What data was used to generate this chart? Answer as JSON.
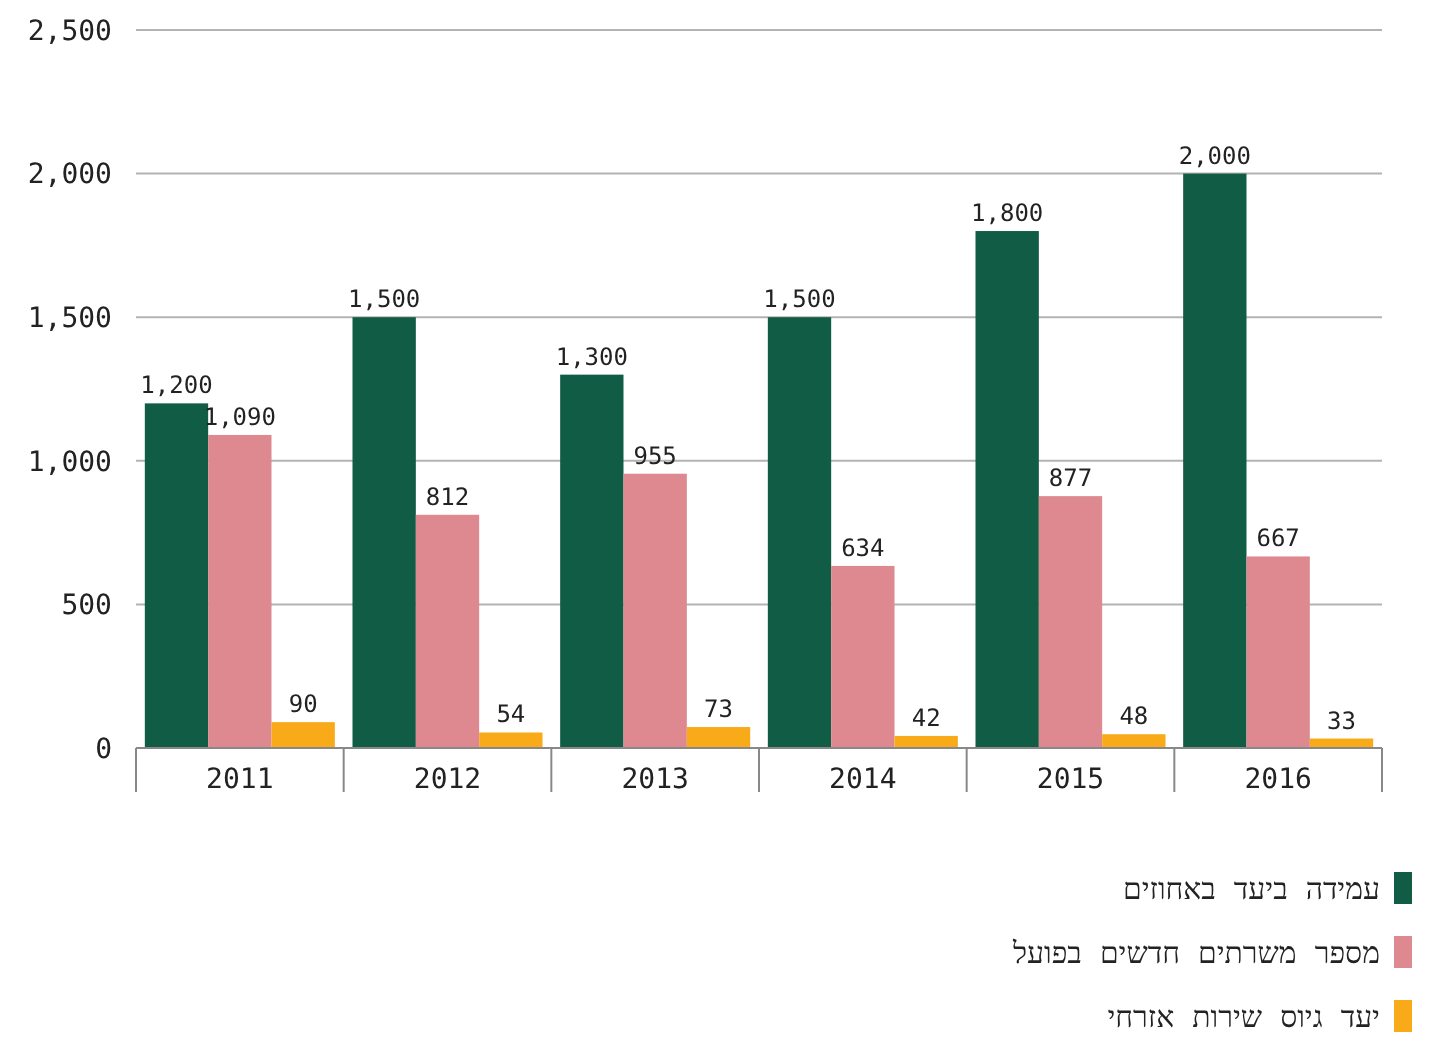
{
  "chart_data": {
    "type": "bar",
    "categories": [
      "2011",
      "2012",
      "2013",
      "2014",
      "2015",
      "2016"
    ],
    "series": [
      {
        "name": "עמידה ביעד באחוזים",
        "color": "#115c45",
        "values": [
          1200,
          1500,
          1300,
          1500,
          1800,
          2000
        ],
        "value_labels": [
          "1,200",
          "1,500",
          "1,300",
          "1,500",
          "1,800",
          "2,000"
        ]
      },
      {
        "name": "מספר משרתים חדשים בפועל",
        "color": "#de8990",
        "values": [
          1090,
          812,
          955,
          634,
          877,
          667
        ],
        "value_labels": [
          "1,090",
          "812",
          "955",
          "634",
          "877",
          "667"
        ]
      },
      {
        "name": "יעד גיוס שירות אזרחי",
        "color": "#f9aa19",
        "values": [
          90,
          54,
          73,
          42,
          48,
          33
        ],
        "value_labels": [
          "90",
          "54",
          "73",
          "42",
          "48",
          "33"
        ]
      }
    ],
    "ylim": [
      0,
      2500
    ],
    "yticks": [
      0,
      {
        "value": 500,
        "label": "500"
      },
      {
        "value": 1000,
        "label": "1,000"
      },
      {
        "value": 1500,
        "label": "1,500"
      },
      {
        "value": 2000,
        "label": "2,000"
      },
      {
        "value": 2500,
        "label": "2,500"
      }
    ],
    "grid": "y",
    "legend": "bottom right"
  }
}
